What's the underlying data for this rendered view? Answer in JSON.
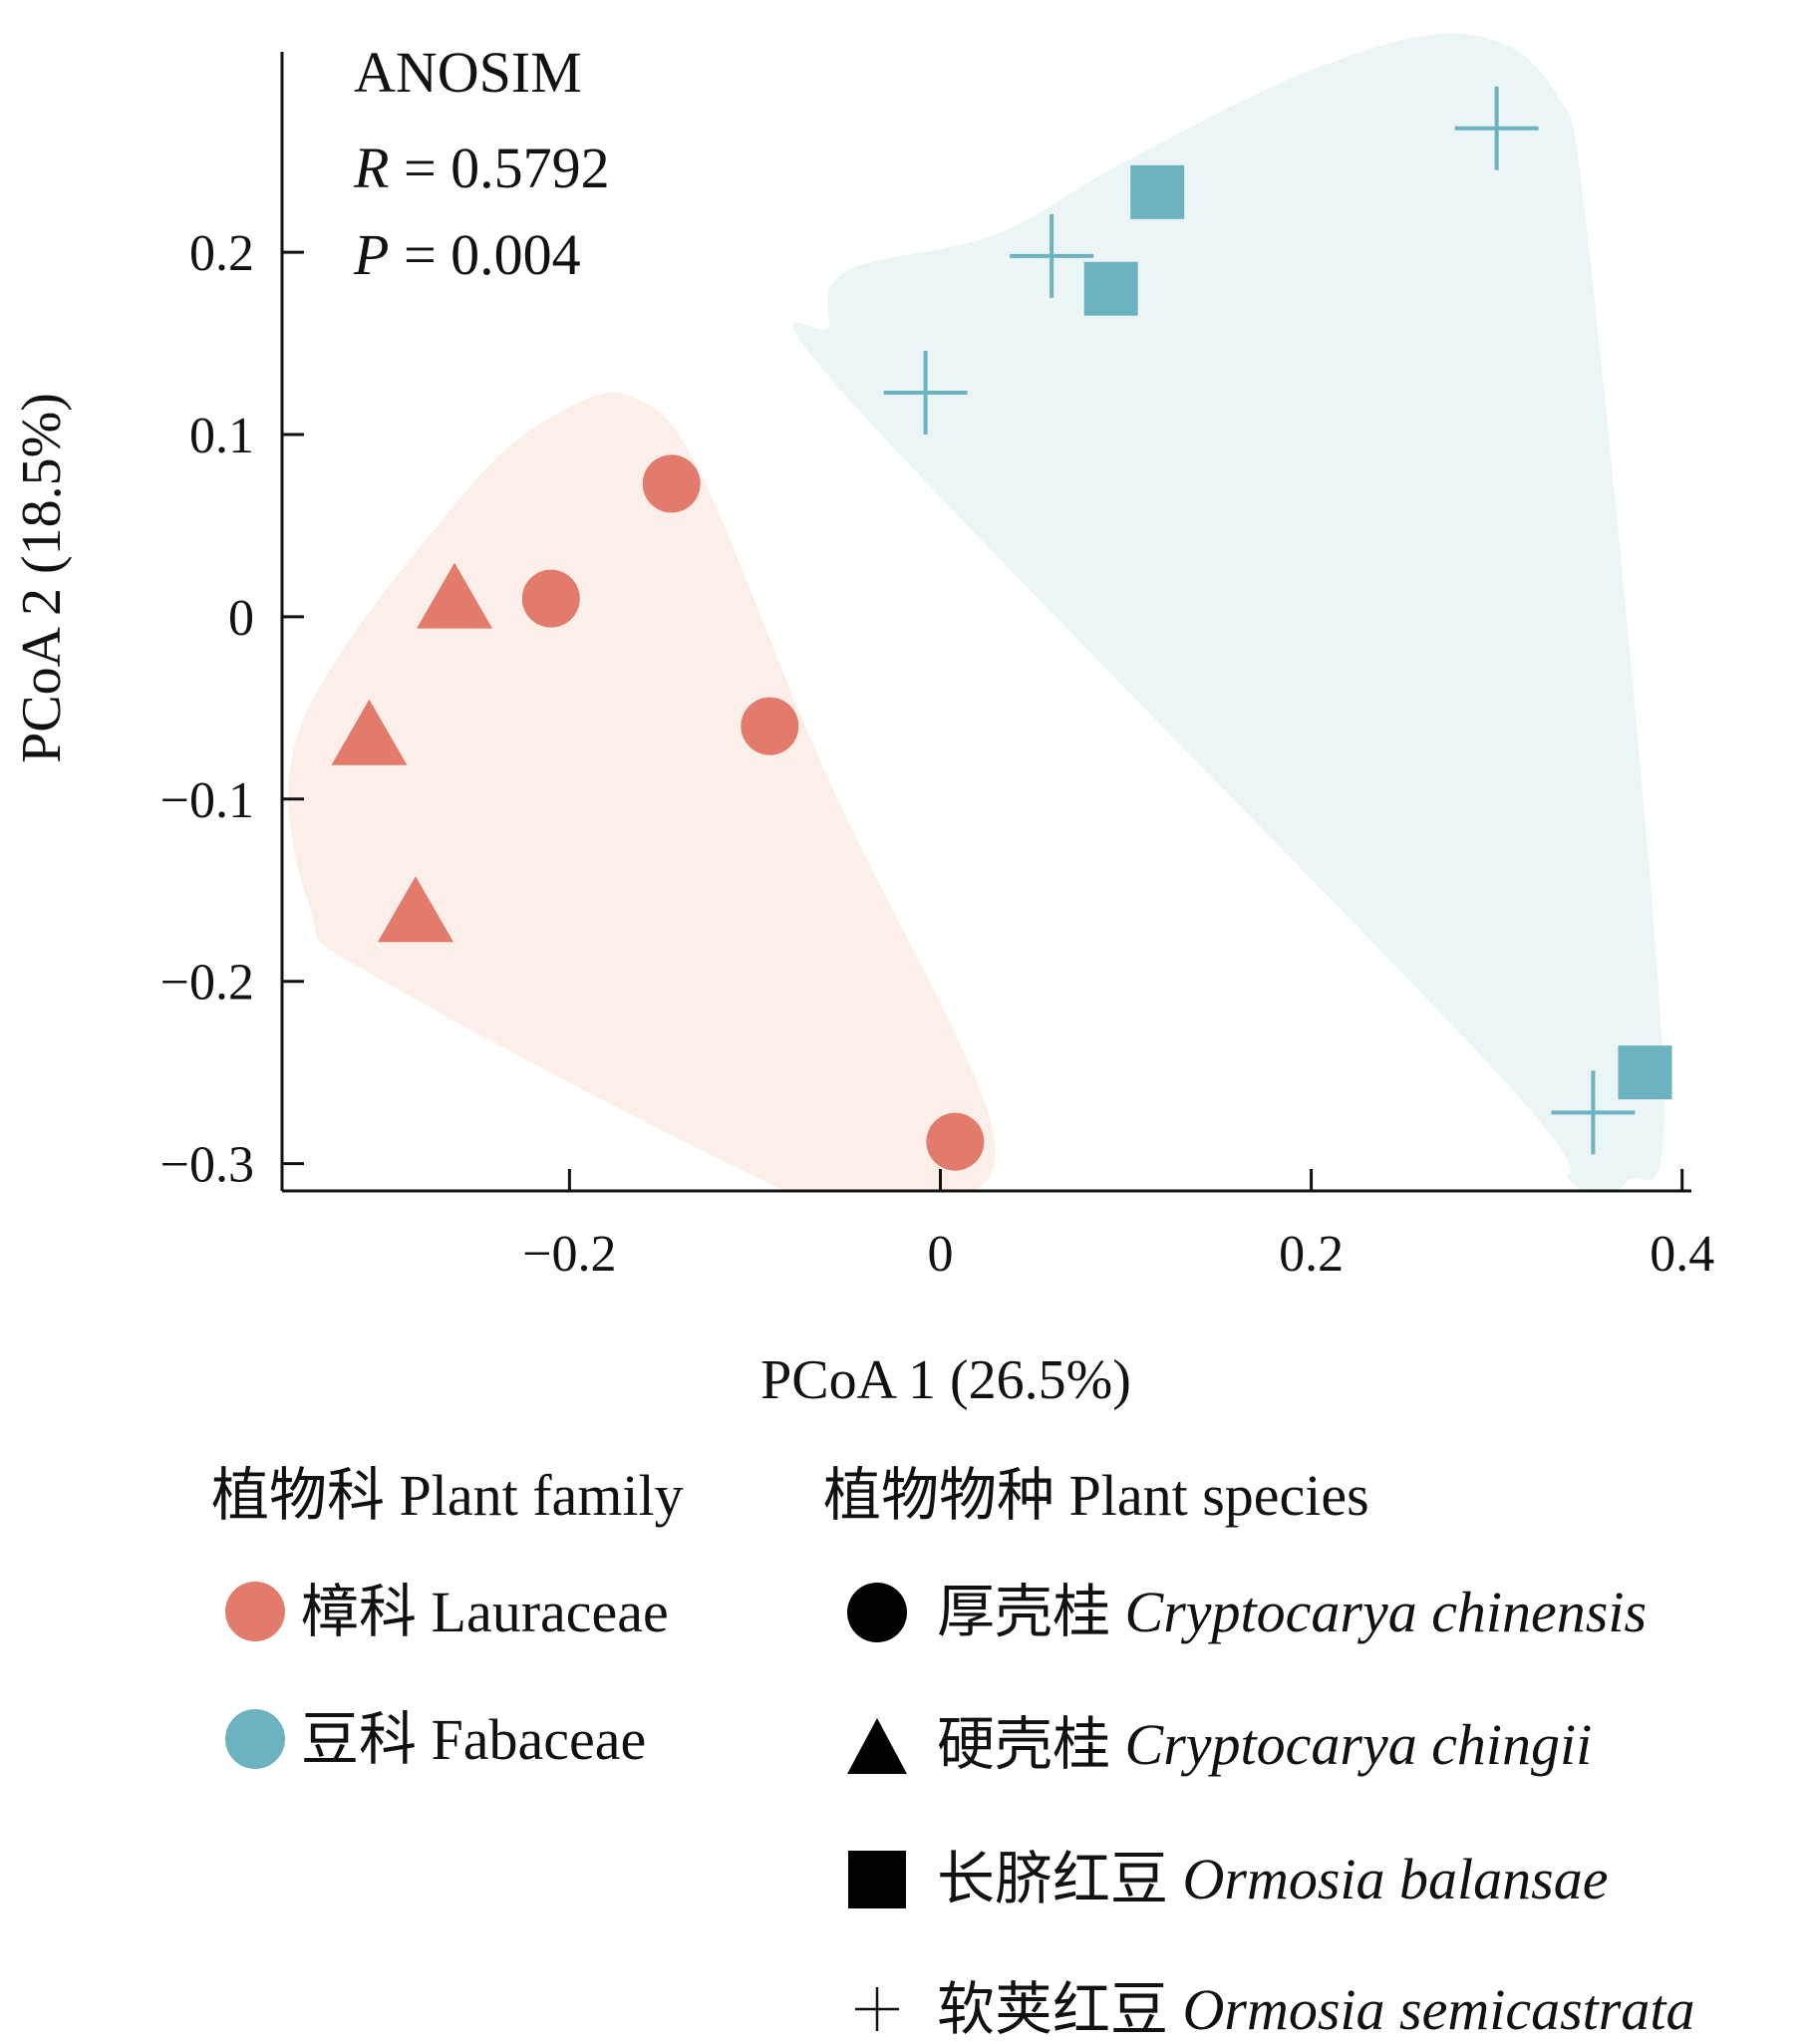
{
  "chart_data": {
    "type": "scatter",
    "xlabel": "PCoA 1 (26.5%)",
    "ylabel": "PCoA 2 (18.5%)",
    "xlim": [
      -0.355,
      0.405
    ],
    "ylim": [
      -0.315,
      0.31
    ],
    "x_ticks": [
      {
        "value": -0.2,
        "label": "−0.2"
      },
      {
        "value": 0,
        "label": "0"
      },
      {
        "value": 0.2,
        "label": "0.2"
      },
      {
        "value": 0.4,
        "label": "0.4"
      }
    ],
    "y_ticks": [
      {
        "value": 0.2,
        "label": "0.2"
      },
      {
        "value": 0.1,
        "label": "0.1"
      },
      {
        "value": 0,
        "label": "0"
      },
      {
        "value": -0.1,
        "label": "−0.1"
      },
      {
        "value": -0.2,
        "label": "−0.2"
      },
      {
        "value": -0.3,
        "label": "−0.3"
      }
    ],
    "annotation": {
      "title": "ANOSIM",
      "r_symbol": "R",
      "r_rest": " = 0.5792",
      "p_symbol": "P",
      "p_rest": " = 0.004"
    },
    "colors": {
      "Lauraceae": "#e27b6b",
      "Fabaceae": "#6bb3c0",
      "Lauraceae_hull": "#fcefe9",
      "Fabaceae_hull": "#ebf5f6"
    },
    "series": [
      {
        "family": "Lauraceae",
        "species": "Cryptocarya chinensis",
        "marker": "circle",
        "points": [
          [
            -0.145,
            0.073
          ],
          [
            -0.21,
            0.01
          ],
          [
            -0.092,
            -0.06
          ],
          [
            0.008,
            -0.288
          ]
        ]
      },
      {
        "family": "Lauraceae",
        "species": "Cryptocarya chingii",
        "marker": "triangle",
        "points": [
          [
            -0.262,
            0.01
          ],
          [
            -0.308,
            -0.065
          ],
          [
            -0.283,
            -0.162
          ]
        ]
      },
      {
        "family": "Fabaceae",
        "species": "Ormosia balansae",
        "marker": "square",
        "points": [
          [
            0.117,
            0.233
          ],
          [
            0.092,
            0.18
          ],
          [
            0.38,
            -0.25
          ]
        ]
      },
      {
        "family": "Fabaceae",
        "species": "Ormosia semicastrata",
        "marker": "plus",
        "points": [
          [
            0.3,
            0.268
          ],
          [
            0.06,
            0.198
          ],
          [
            -0.008,
            0.123
          ],
          [
            0.352,
            -0.272
          ]
        ]
      }
    ],
    "hulls": [
      {
        "family": "Lauraceae",
        "points": [
          [
            -0.255,
            0.07
          ],
          [
            -0.2,
            0.115
          ],
          [
            -0.165,
            0.12
          ],
          [
            -0.13,
            0.08
          ],
          [
            -0.06,
            -0.09
          ],
          [
            0.025,
            -0.27
          ],
          [
            0.01,
            -0.32
          ],
          [
            -0.06,
            -0.325
          ],
          [
            -0.3,
            -0.2
          ],
          [
            -0.34,
            -0.16
          ],
          [
            -0.345,
            -0.06
          ]
        ]
      },
      {
        "family": "Fabaceae",
        "points": [
          [
            -0.05,
            0.19
          ],
          [
            0.03,
            0.21
          ],
          [
            0.1,
            0.25
          ],
          [
            0.2,
            0.3
          ],
          [
            0.28,
            0.32
          ],
          [
            0.33,
            0.29
          ],
          [
            0.35,
            0.2
          ],
          [
            0.39,
            -0.25
          ],
          [
            0.37,
            -0.31
          ],
          [
            0.34,
            -0.31
          ],
          [
            0.3,
            -0.25
          ],
          [
            -0.05,
            0.12
          ],
          [
            -0.06,
            0.16
          ]
        ]
      }
    ],
    "legend": {
      "family_header": "植物科 Plant family",
      "species_header": "植物物种 Plant species",
      "families": [
        {
          "cn": "樟科",
          "en": "Lauraceae"
        },
        {
          "cn": "豆科",
          "en": "Fabaceae"
        }
      ],
      "species": [
        {
          "cn": "厚壳桂",
          "latin": "Cryptocarya chinensis"
        },
        {
          "cn": "硬壳桂",
          "latin": "Cryptocarya chingii"
        },
        {
          "cn": "长脐红豆",
          "latin": "Ormosia balansae"
        },
        {
          "cn": "软荚红豆",
          "latin": "Ormosia semicastrata"
        }
      ]
    }
  }
}
